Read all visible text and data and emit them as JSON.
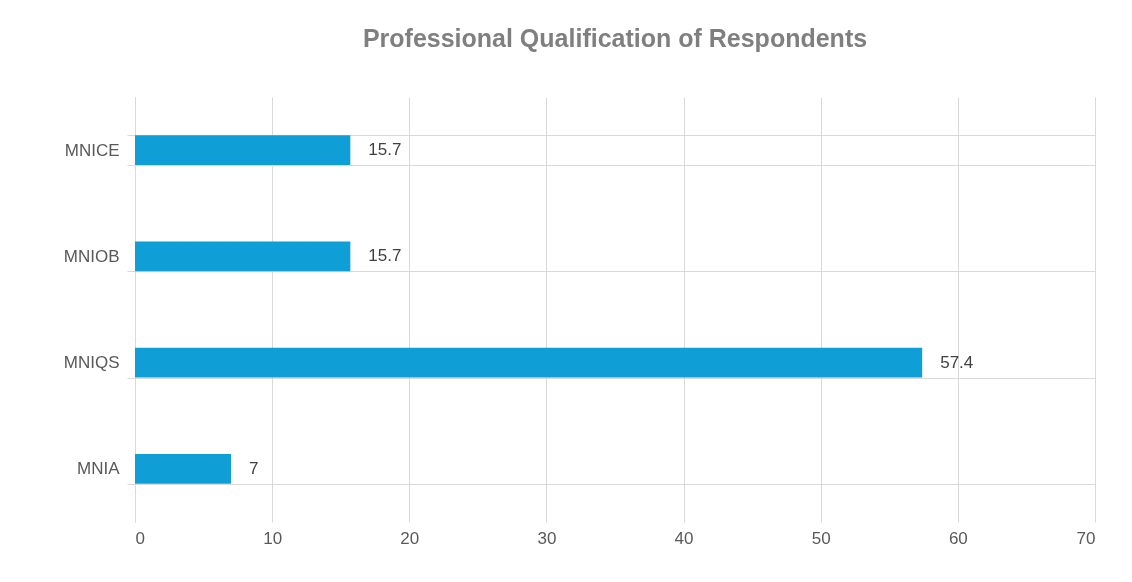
{
  "chart_data": {
    "type": "bar",
    "orientation": "horizontal",
    "title": "Professional Qualification of Respondents",
    "categories": [
      "MNICE",
      "MNIOB",
      "MNIQS",
      "MNIA"
    ],
    "values": [
      15.7,
      15.7,
      57.4,
      7
    ],
    "color": "#0f9ed5",
    "xlim": [
      0,
      70
    ],
    "xticks": [
      0,
      10,
      20,
      30,
      40,
      50,
      60,
      70
    ],
    "grid": true,
    "data_labels": true
  }
}
